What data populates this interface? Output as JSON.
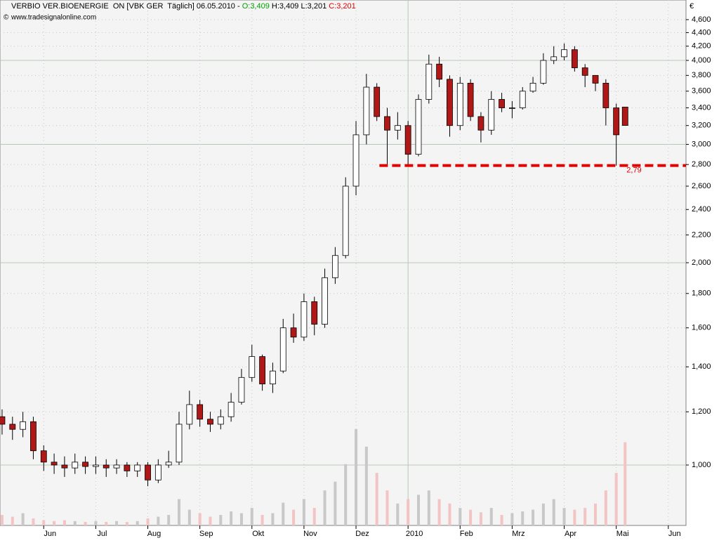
{
  "chart_data": {
    "type": "candlestick",
    "title_parts": [
      {
        "text": "VERBIO VER.BIOENERGIE  ON [VBK GER  Täglich] 06.05.2010 - ",
        "color": "#000000"
      },
      {
        "text": "O:3,409",
        "color": "#00a000"
      },
      {
        "text": " H:3,409 L:3,201 ",
        "color": "#000000"
      },
      {
        "text": "C:3,201",
        "color": "#e00000"
      }
    ],
    "copyright": "©",
    "source": "www.tradesignalonline.com",
    "currency": "€",
    "log_scale": true,
    "grid": true,
    "up_color": "#ffffff",
    "down_color": "#b01818",
    "volume_up_color": "#c8c8c8",
    "volume_down_color": "#f2c4c4",
    "x": [
      4.2,
      4.4,
      4.6,
      4.8,
      5.0,
      5.2,
      5.4,
      5.6,
      5.8,
      6.0,
      6.2,
      6.4,
      6.6,
      6.8,
      7.0,
      7.2,
      7.4,
      7.6,
      7.8,
      8.0,
      8.2,
      8.4,
      8.6,
      8.8,
      9.0,
      9.2,
      9.4,
      9.6,
      9.8,
      10.0,
      10.2,
      10.4,
      10.6,
      10.8,
      11.0,
      11.2,
      11.4,
      11.6,
      11.8,
      12.0,
      12.2,
      12.4,
      12.6,
      12.8,
      13.0,
      13.2,
      13.4,
      13.6,
      13.8,
      14.0,
      14.2,
      14.4,
      14.6,
      14.8,
      15.0,
      15.2,
      15.4,
      15.6,
      15.8,
      16.0,
      16.17
    ],
    "open": [
      1.18,
      1.15,
      1.13,
      1.16,
      1.05,
      1.01,
      1.0,
      0.99,
      1.01,
      0.995,
      1.0,
      0.99,
      1.0,
      0.98,
      1.0,
      0.95,
      1.0,
      1.01,
      1.15,
      1.23,
      1.17,
      1.15,
      1.18,
      1.24,
      1.35,
      1.45,
      1.32,
      1.38,
      1.6,
      1.55,
      1.75,
      1.62,
      1.9,
      2.05,
      2.6,
      3.1,
      3.65,
      3.3,
      3.15,
      3.2,
      2.9,
      3.5,
      3.95,
      3.75,
      3.2,
      3.7,
      3.3,
      3.15,
      3.5,
      3.4,
      3.4,
      3.6,
      3.7,
      4.0,
      4.05,
      4.15,
      3.9,
      3.8,
      3.7,
      3.4,
      3.409
    ],
    "high": [
      1.21,
      1.18,
      1.2,
      1.18,
      1.07,
      1.04,
      1.03,
      1.04,
      1.03,
      1.03,
      1.02,
      1.02,
      1.01,
      1.01,
      1.01,
      1.02,
      1.05,
      1.2,
      1.29,
      1.25,
      1.2,
      1.21,
      1.28,
      1.39,
      1.51,
      1.46,
      1.42,
      1.65,
      1.68,
      1.8,
      1.78,
      1.96,
      2.11,
      2.68,
      3.25,
      3.82,
      3.7,
      3.4,
      3.35,
      3.25,
      3.56,
      4.08,
      4.05,
      3.8,
      3.78,
      3.75,
      3.35,
      3.6,
      3.58,
      3.48,
      3.65,
      3.78,
      4.1,
      4.2,
      4.24,
      4.2,
      3.95,
      3.8,
      3.75,
      3.45,
      3.409
    ],
    "low": [
      1.11,
      1.09,
      1.1,
      1.02,
      0.98,
      0.97,
      0.96,
      0.97,
      0.97,
      0.97,
      0.96,
      0.97,
      0.96,
      0.96,
      0.93,
      0.94,
      0.99,
      1.0,
      1.13,
      1.14,
      1.12,
      1.13,
      1.16,
      1.23,
      1.33,
      1.29,
      1.28,
      1.37,
      1.52,
      1.53,
      1.56,
      1.6,
      1.86,
      2.03,
      2.52,
      3.0,
      3.25,
      2.8,
      3.05,
      2.79,
      2.88,
      3.45,
      3.65,
      3.08,
      3.15,
      3.25,
      3.02,
      3.1,
      3.35,
      3.28,
      3.38,
      3.58,
      3.68,
      3.95,
      4.0,
      3.85,
      3.65,
      3.6,
      3.2,
      2.79,
      3.201
    ],
    "close": [
      1.15,
      1.13,
      1.16,
      1.05,
      1.01,
      1.0,
      0.99,
      1.01,
      0.995,
      1.0,
      0.99,
      1.0,
      0.98,
      1.0,
      0.95,
      1.0,
      1.01,
      1.15,
      1.23,
      1.17,
      1.15,
      1.18,
      1.24,
      1.35,
      1.45,
      1.32,
      1.38,
      1.6,
      1.55,
      1.75,
      1.62,
      1.9,
      2.05,
      2.6,
      3.1,
      3.65,
      3.3,
      3.15,
      3.2,
      2.9,
      3.5,
      3.95,
      3.75,
      3.2,
      3.7,
      3.3,
      3.15,
      3.5,
      3.4,
      3.4,
      3.6,
      3.7,
      4.0,
      4.05,
      4.15,
      3.9,
      3.8,
      3.7,
      3.4,
      3.1,
      3.201
    ],
    "volume": [
      12,
      10,
      14,
      8,
      6,
      5,
      6,
      5,
      4,
      5,
      4,
      5,
      4,
      5,
      8,
      10,
      12,
      30,
      18,
      14,
      10,
      12,
      16,
      14,
      20,
      12,
      14,
      26,
      18,
      30,
      20,
      40,
      50,
      70,
      110,
      90,
      60,
      40,
      25,
      30,
      35,
      40,
      30,
      25,
      20,
      18,
      15,
      20,
      12,
      14,
      16,
      18,
      25,
      30,
      20,
      18,
      20,
      25,
      40,
      60,
      95
    ],
    "y2lim": [
      0,
      600
    ],
    "ylim": [
      0.813,
      4.92
    ],
    "yticks": [
      {
        "value": 1.0,
        "label": "1,000"
      },
      {
        "value": 1.2,
        "label": "1,200"
      },
      {
        "value": 1.4,
        "label": "1,400"
      },
      {
        "value": 1.6,
        "label": "1,600"
      },
      {
        "value": 1.8,
        "label": "1,800"
      },
      {
        "value": 2.0,
        "label": "2,000"
      },
      {
        "value": 2.2,
        "label": "2,200"
      },
      {
        "value": 2.4,
        "label": "2,400"
      },
      {
        "value": 2.6,
        "label": "2,600"
      },
      {
        "value": 2.8,
        "label": "2,800"
      },
      {
        "value": 3.0,
        "label": "3,000"
      },
      {
        "value": 3.2,
        "label": "3,200"
      },
      {
        "value": 3.4,
        "label": "3,400"
      },
      {
        "value": 3.6,
        "label": "3,600"
      },
      {
        "value": 3.8,
        "label": "3,800"
      },
      {
        "value": 4.0,
        "label": "4,000"
      },
      {
        "value": 4.2,
        "label": "4,200"
      },
      {
        "value": 4.4,
        "label": "4,400"
      },
      {
        "value": 4.6,
        "label": "4,600"
      }
    ],
    "xlim": [
      4.16,
      17.34
    ],
    "xticks": [
      {
        "value": 5,
        "label": "Jun"
      },
      {
        "value": 6,
        "label": "Jul"
      },
      {
        "value": 7,
        "label": "Aug"
      },
      {
        "value": 8,
        "label": "Sep"
      },
      {
        "value": 9,
        "label": "Okt"
      },
      {
        "value": 10,
        "label": "Nov"
      },
      {
        "value": 11,
        "label": "Dez"
      },
      {
        "value": 12,
        "label": "2010"
      },
      {
        "value": 13,
        "label": "Feb"
      },
      {
        "value": 14,
        "label": "Mrz"
      },
      {
        "value": 15,
        "label": "Apr"
      },
      {
        "value": 16,
        "label": "Mai"
      },
      {
        "value": 17,
        "label": "Jun"
      }
    ],
    "support": {
      "value": 2.79,
      "label": "2,79",
      "x": [
        11.45,
        17.34
      ],
      "color": "#e00000"
    }
  }
}
